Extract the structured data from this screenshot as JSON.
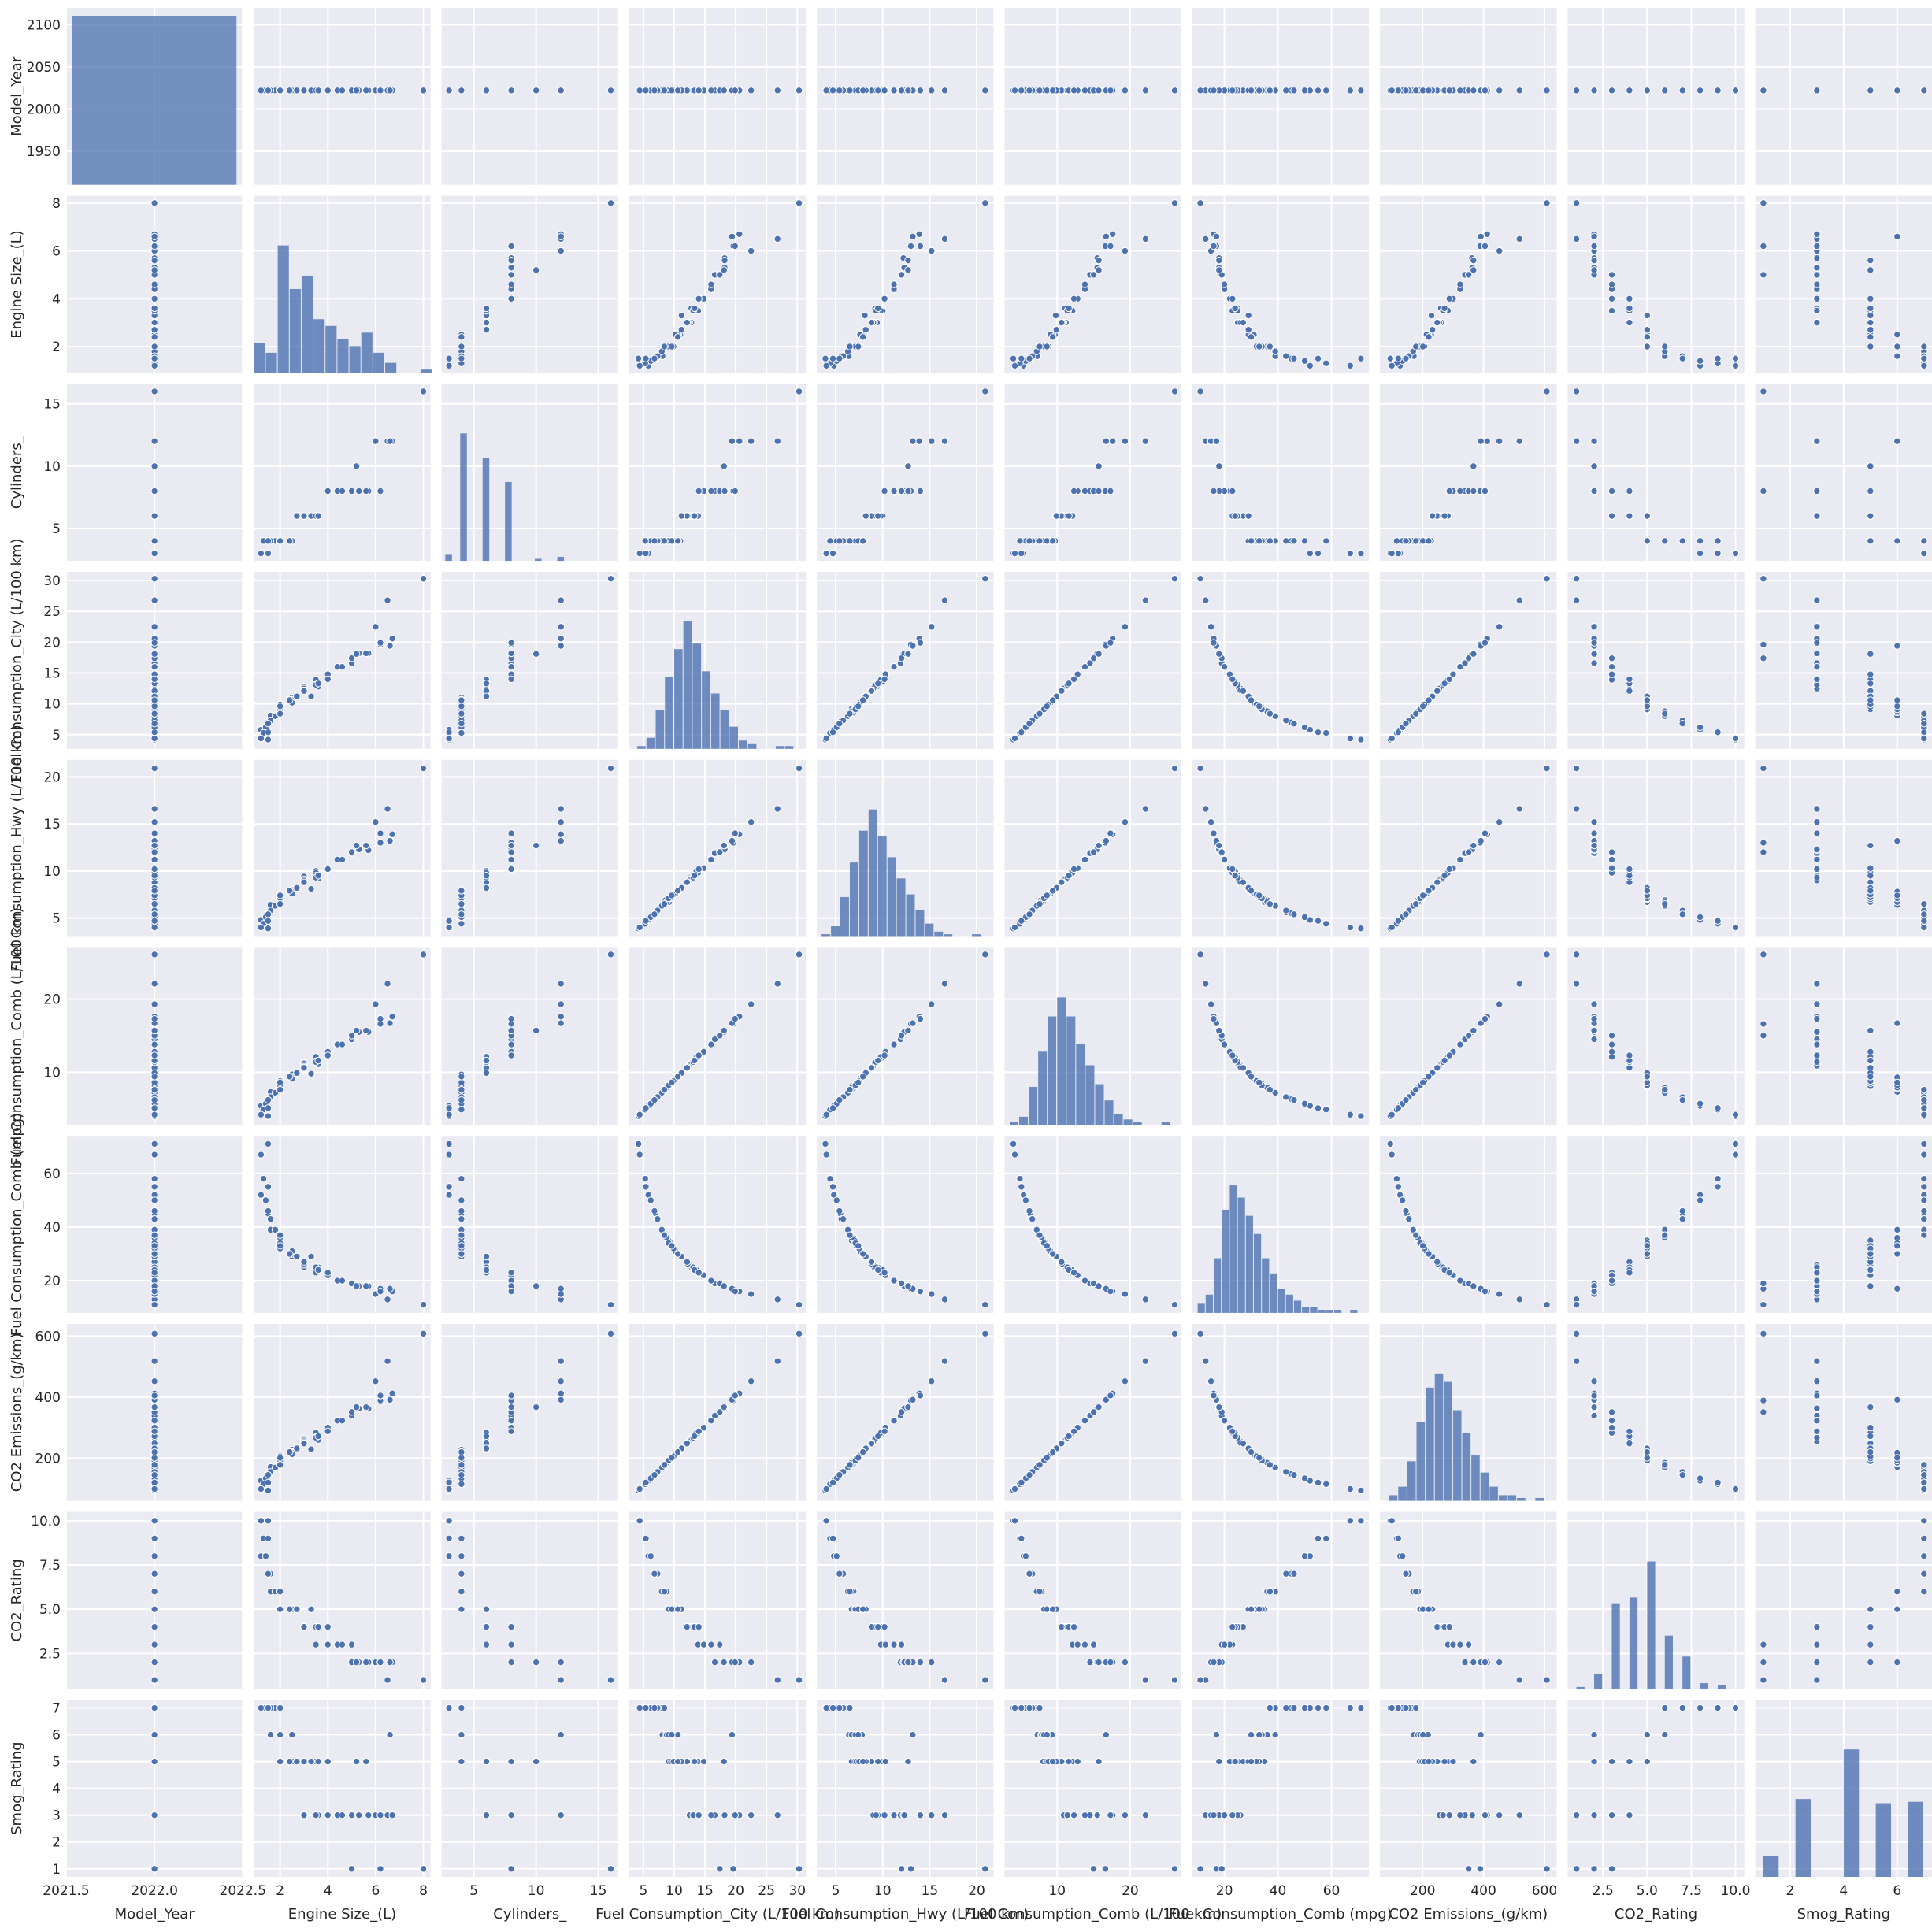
{
  "colors": {
    "background": "#ffffff",
    "panel": "#eaeaf2",
    "grid": "#ffffff",
    "point": "#4c72b0",
    "bar": "#4c72b0",
    "text": "#262626"
  },
  "chart_data": {
    "type": "scatter",
    "subtype": "pairplot",
    "grid": true,
    "variables": [
      {
        "name": "Model_Year",
        "range": [
          2021.5,
          2022.5
        ],
        "x_ticks": [
          2021.5,
          2022.0,
          2022.5
        ],
        "x_tick_labels": [
          "2021.5",
          "2022.0",
          "2022.5"
        ],
        "y_range": [
          1910,
          2120
        ],
        "y_ticks": [
          1950,
          2000,
          2050,
          2100
        ],
        "y_tick_labels": [
          "1950",
          "2000",
          "2050",
          "2100"
        ],
        "sample": [
          2022,
          2022,
          2022,
          2022,
          2022,
          2022,
          2022,
          2022,
          2022,
          2022,
          2022,
          2022,
          2022,
          2022,
          2022,
          2022,
          2022,
          2022,
          2022,
          2022,
          2022,
          2022,
          2022,
          2022,
          2022,
          2022,
          2022,
          2022,
          2022,
          2022,
          2022,
          2022,
          2022,
          2022,
          2022,
          2022,
          2022,
          2022,
          2022,
          2022,
          2022,
          2022,
          2022,
          2022,
          2022,
          2022,
          2022,
          2022,
          2022,
          2022,
          2022,
          2022,
          2022,
          2022,
          2022,
          2022,
          2022,
          2022,
          2022,
          2022,
          2022,
          2022,
          2022,
          2022
        ],
        "hist_bins": [],
        "hist_counts": []
      },
      {
        "name": "Engine Size_(L)",
        "range": [
          0.9,
          8.3
        ],
        "ticks": [
          2,
          4,
          6,
          8
        ],
        "tick_labels": [
          "2",
          "4",
          "6",
          "8"
        ],
        "sample": [
          1.2,
          1.5,
          1.6,
          2.0,
          2.0,
          2.4,
          2.5,
          3.0,
          3.5,
          1.6,
          2.0,
          2.5,
          3.6,
          4.0,
          5.0,
          2.0,
          2.4,
          3.0,
          3.5,
          5.7,
          6.2,
          1.4,
          2.0,
          2.0,
          3.3,
          4.4,
          6.5,
          1.5,
          1.8,
          2.0,
          2.5,
          3.0,
          4.0,
          5.3,
          6.7,
          8.0,
          2.0,
          2.0,
          3.0,
          1.3,
          1.6,
          2.0,
          2.5,
          3.5,
          5.0,
          6.0,
          1.5,
          2.0,
          3.0,
          3.5,
          4.6,
          5.6,
          6.6,
          1.2,
          2.0,
          2.7,
          3.6,
          4.0,
          5.2,
          6.2,
          1.5,
          2.0,
          2.0,
          2.4
        ],
        "hist_bins": [
          0.9,
          1.4,
          1.9,
          2.4,
          2.9,
          3.4,
          3.9,
          4.4,
          4.9,
          5.4,
          5.9,
          6.4,
          6.9,
          7.4,
          7.9,
          8.4
        ],
        "hist_counts": [
          9,
          6,
          38,
          25,
          29,
          16,
          14,
          10,
          8,
          12,
          6,
          3,
          0,
          0,
          1
        ]
      },
      {
        "name": "Cylinders_",
        "range": [
          2.4,
          16.6
        ],
        "ticks": [
          5,
          10,
          15
        ],
        "tick_labels": [
          "5",
          "10",
          "15"
        ],
        "sample": [
          3,
          4,
          4,
          4,
          4,
          4,
          4,
          6,
          6,
          4,
          4,
          4,
          6,
          8,
          8,
          4,
          4,
          6,
          6,
          8,
          8,
          4,
          4,
          4,
          6,
          8,
          12,
          3,
          4,
          4,
          4,
          6,
          8,
          8,
          12,
          16,
          4,
          4,
          6,
          4,
          4,
          4,
          4,
          6,
          8,
          12,
          3,
          4,
          6,
          6,
          8,
          8,
          12,
          3,
          4,
          6,
          6,
          8,
          10,
          8,
          4,
          4,
          4,
          4
        ],
        "hist_bins": [
          2.7,
          3.3,
          3.9,
          4.5,
          5.1,
          5.7,
          6.3,
          6.9,
          7.5,
          8.1,
          8.7,
          9.3,
          9.9,
          10.5,
          11.1,
          11.7,
          12.3
        ],
        "hist_counts": [
          3,
          0,
          63,
          0,
          0,
          51,
          0,
          0,
          39,
          0,
          0,
          0,
          1,
          0,
          0,
          2
        ]
      },
      {
        "name": "Fuel Consumption_City (L/100 km)",
        "range": [
          2.7,
          31.4
        ],
        "ticks": [
          5,
          10,
          15,
          20,
          25,
          30
        ],
        "tick_labels": [
          "5",
          "10",
          "15",
          "20",
          "25",
          "30"
        ],
        "sample": [
          5.8,
          7.0,
          8.1,
          9.1,
          10.0,
          10.7,
          11.0,
          12.8,
          13.6,
          7.2,
          9.0,
          10.7,
          12.8,
          14.1,
          16.6,
          9.6,
          10.6,
          12.8,
          13.9,
          18.2,
          19.6,
          6.2,
          9.2,
          8.6,
          11.2,
          16.0,
          26.8,
          4.2,
          8.0,
          9.1,
          10.6,
          12.5,
          14.8,
          18.2,
          20.6,
          30.3,
          9.4,
          9.5,
          12.2,
          5.3,
          7.3,
          8.8,
          10.2,
          13.1,
          17.4,
          22.5,
          5.4,
          9.1,
          12.1,
          13.1,
          16.0,
          18.2,
          19.4,
          4.4,
          8.4,
          11.2,
          13.3,
          14.0,
          18.1,
          19.9,
          6.8,
          9.9,
          9.6,
          10.6
        ],
        "hist_bins": [
          4.0,
          5.5,
          7.0,
          8.5,
          10.0,
          11.5,
          13.0,
          14.5,
          16.0,
          17.5,
          19.0,
          20.5,
          22.0,
          23.5,
          25.0,
          26.5,
          28.0,
          29.5
        ],
        "hist_counts": [
          1,
          4,
          14,
          26,
          36,
          46,
          38,
          28,
          20,
          14,
          8,
          3,
          2,
          0,
          0,
          1,
          1
        ]
      },
      {
        "name": "Fuel Consumption_Hwy (L/100 km)",
        "range": [
          3.0,
          21.8
        ],
        "ticks": [
          5,
          10,
          15,
          20
        ],
        "tick_labels": [
          "5",
          "10",
          "15",
          "20"
        ],
        "sample": [
          4.8,
          5.5,
          6.4,
          7.1,
          7.6,
          7.9,
          8.0,
          9.4,
          10.0,
          5.6,
          6.8,
          7.9,
          9.2,
          10.2,
          11.9,
          7.1,
          7.8,
          9.1,
          9.8,
          12.2,
          13.0,
          5.1,
          6.7,
          6.9,
          8.1,
          11.2,
          16.6,
          3.9,
          6.3,
          7.0,
          7.8,
          9.0,
          10.3,
          12.3,
          13.9,
          20.9,
          7.1,
          7.2,
          8.8,
          4.4,
          5.8,
          6.7,
          7.6,
          9.5,
          12.0,
          15.2,
          4.7,
          7.1,
          8.8,
          9.3,
          11.2,
          12.7,
          13.2,
          4.0,
          6.5,
          8.2,
          9.5,
          10.2,
          12.7,
          14.0,
          5.4,
          7.5,
          7.4,
          7.9
        ],
        "hist_bins": [
          3.5,
          4.5,
          5.5,
          6.5,
          7.5,
          8.5,
          9.5,
          10.5,
          11.5,
          12.5,
          13.5,
          14.5,
          15.5,
          16.5,
          17.5,
          18.5,
          19.5,
          20.5
        ],
        "hist_counts": [
          1,
          4,
          15,
          28,
          40,
          48,
          38,
          30,
          22,
          16,
          10,
          5,
          2,
          1,
          0,
          0,
          1
        ]
      },
      {
        "name": "Fuel Consumption_Comb (L/100 km)",
        "range": [
          2.8,
          27.0
        ],
        "ticks": [
          10,
          20
        ],
        "tick_labels": [
          "10",
          "20"
        ],
        "sample": [
          5.4,
          6.3,
          7.3,
          8.2,
          8.9,
          9.4,
          9.7,
          11.3,
          12.0,
          6.5,
          8.0,
          9.4,
          11.1,
          12.3,
          14.5,
          8.5,
          9.4,
          11.2,
          12.1,
          15.5,
          16.6,
          5.7,
          8.1,
          7.8,
          9.8,
          13.8,
          22.1,
          4.0,
          7.2,
          8.1,
          9.3,
          10.9,
          12.8,
          15.5,
          17.6,
          26.1,
          8.4,
          8.5,
          10.7,
          4.9,
          6.6,
          7.9,
          9.1,
          11.5,
          15.0,
          19.3,
          5.1,
          8.2,
          10.6,
          11.4,
          13.8,
          15.7,
          16.7,
          4.2,
          7.6,
          9.9,
          11.6,
          12.3,
          15.7,
          17.3,
          6.2,
          8.8,
          8.6,
          9.4
        ],
        "hist_bins": [
          3.5,
          4.8,
          6.1,
          7.4,
          8.7,
          10.0,
          11.3,
          12.6,
          13.9,
          15.2,
          16.5,
          17.8,
          19.1,
          20.4,
          21.7,
          23.0,
          24.3,
          25.6
        ],
        "hist_counts": [
          1,
          3,
          14,
          27,
          40,
          47,
          40,
          30,
          22,
          15,
          9,
          4,
          2,
          1,
          0,
          0,
          1
        ]
      },
      {
        "name": "Fuel Consumption_Comb (mpg)",
        "range": [
          8.0,
          74.0
        ],
        "ticks": [
          20,
          40,
          60
        ],
        "tick_labels": [
          "20",
          "40",
          "60"
        ],
        "sample": [
          52,
          45,
          39,
          34,
          32,
          30,
          29,
          25,
          24,
          43,
          35,
          30,
          25,
          23,
          19,
          33,
          30,
          25,
          23,
          18,
          17,
          50,
          35,
          36,
          29,
          20,
          13,
          71,
          39,
          35,
          30,
          26,
          22,
          18,
          16,
          11,
          34,
          33,
          26,
          58,
          43,
          36,
          31,
          25,
          19,
          15,
          55,
          34,
          27,
          25,
          20,
          18,
          17,
          67,
          37,
          29,
          24,
          23,
          18,
          16,
          46,
          32,
          33,
          30
        ],
        "hist_bins": [
          10,
          13,
          16,
          19,
          22,
          25,
          28,
          31,
          34,
          37,
          40,
          43,
          46,
          49,
          52,
          55,
          58,
          61,
          64,
          67,
          70
        ],
        "hist_counts": [
          3,
          6,
          18,
          34,
          42,
          38,
          32,
          26,
          18,
          13,
          8,
          6,
          4,
          2,
          2,
          1,
          1,
          1,
          0,
          1
        ]
      },
      {
        "name": "CO2 Emissions_(g/km)",
        "range": [
          60,
          640
        ],
        "ticks": [
          200,
          400,
          600
        ],
        "tick_labels": [
          "200",
          "400",
          "600"
        ],
        "sample": [
          126,
          148,
          171,
          192,
          209,
          220,
          228,
          265,
          282,
          152,
          187,
          220,
          260,
          288,
          339,
          199,
          220,
          262,
          283,
          362,
          389,
          134,
          190,
          183,
          229,
          323,
          518,
          94,
          169,
          190,
          218,
          255,
          300,
          363,
          412,
          608,
          197,
          199,
          250,
          115,
          155,
          185,
          213,
          269,
          351,
          452,
          120,
          192,
          248,
          267,
          323,
          367,
          391,
          99,
          178,
          232,
          272,
          288,
          367,
          405,
          145,
          206,
          201,
          220
        ],
        "hist_bins": [
          90,
          120,
          150,
          180,
          210,
          240,
          270,
          300,
          330,
          360,
          390,
          420,
          450,
          480,
          510,
          540,
          570,
          600
        ],
        "hist_counts": [
          2,
          5,
          14,
          28,
          40,
          45,
          42,
          32,
          24,
          16,
          10,
          5,
          2,
          2,
          1,
          0,
          1
        ]
      },
      {
        "name": "CO2_Rating",
        "range": [
          0.5,
          10.5
        ],
        "ticks": [
          2.5,
          5.0,
          7.5,
          10.0
        ],
        "tick_labels": [
          "2.5",
          "5.0",
          "7.5",
          "10.0"
        ],
        "sample": [
          8,
          7,
          6,
          5,
          5,
          5,
          5,
          4,
          4,
          7,
          5,
          5,
          4,
          3,
          2,
          5,
          5,
          4,
          3,
          2,
          2,
          8,
          5,
          6,
          5,
          3,
          1,
          10,
          6,
          5,
          5,
          4,
          3,
          2,
          2,
          1,
          5,
          5,
          4,
          9,
          7,
          6,
          5,
          4,
          3,
          2,
          9,
          5,
          4,
          4,
          3,
          2,
          2,
          10,
          6,
          5,
          4,
          4,
          2,
          2,
          7,
          5,
          5,
          5
        ],
        "hist_bins": [
          1.0,
          1.5,
          2.0,
          2.5,
          3.0,
          3.5,
          4.0,
          4.5,
          5.0,
          5.5,
          6.0,
          6.5,
          7.0,
          7.5,
          8.0,
          8.5,
          9.0,
          9.5,
          10.0
        ],
        "hist_counts": [
          1,
          0,
          8,
          0,
          45,
          0,
          48,
          0,
          67,
          0,
          28,
          0,
          17,
          0,
          3,
          0,
          2,
          0
        ]
      },
      {
        "name": "Smog_Rating",
        "range": [
          0.7,
          7.3
        ],
        "ticks": [
          2,
          4,
          6
        ],
        "tick_labels": [
          "2",
          "4",
          "6"
        ],
        "y_ticks": [
          1,
          2,
          3,
          4,
          5,
          6,
          7
        ],
        "y_tick_labels": [
          "1",
          "2",
          "3",
          "4",
          "5",
          "6",
          "7"
        ],
        "sample": [
          7,
          7,
          6,
          5,
          5,
          5,
          5,
          3,
          5,
          7,
          6,
          5,
          3,
          3,
          3,
          6,
          5,
          3,
          5,
          3,
          1,
          7,
          5,
          6,
          5,
          3,
          3,
          7,
          7,
          5,
          6,
          3,
          5,
          3,
          3,
          1,
          6,
          5,
          5,
          7,
          7,
          6,
          5,
          3,
          1,
          3,
          7,
          6,
          5,
          3,
          3,
          5,
          6,
          7,
          7,
          5,
          5,
          3,
          5,
          3,
          7,
          5,
          6,
          5
        ],
        "hist_bins": [
          1.0,
          1.6,
          2.2,
          2.8,
          3.4,
          4.0,
          4.6,
          5.2,
          5.8,
          6.4,
          7.0
        ],
        "hist_counts": [
          15,
          0,
          55,
          0,
          0,
          90,
          0,
          52,
          0,
          53
        ]
      }
    ]
  }
}
